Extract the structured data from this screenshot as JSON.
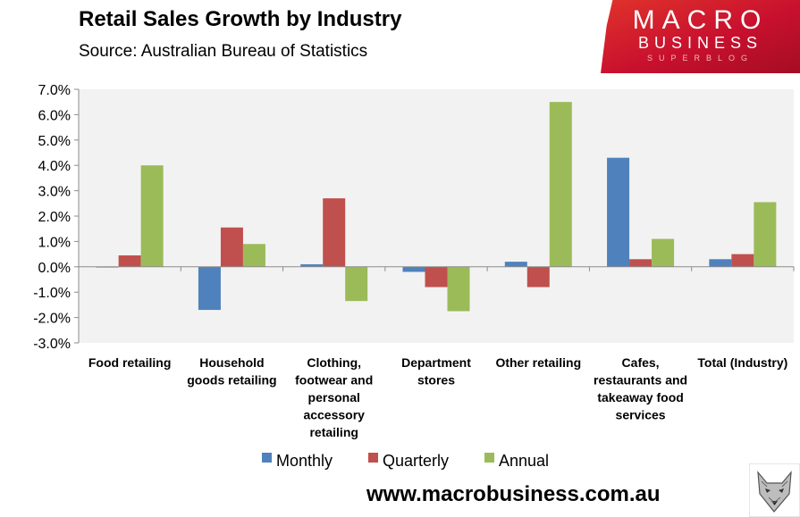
{
  "header": {
    "title": "Retail Sales Growth by Industry",
    "subtitle": "Source: Australian Bureau of Statistics"
  },
  "logo": {
    "line1": "MACRO",
    "line2": "BUSINESS",
    "line3": "SUPERBLOG"
  },
  "footer": {
    "website": "www.macrobusiness.com.au"
  },
  "colors": {
    "monthly": "#4f81bd",
    "quarterly": "#c0504d",
    "annual": "#9bbb59",
    "plot_bg": "#f2f2f2"
  },
  "chart_data": {
    "type": "bar",
    "title": "Retail Sales Growth by Industry",
    "subtitle": "Source: Australian Bureau of Statistics",
    "xlabel": "",
    "ylabel": "",
    "ylim": [
      -3,
      7
    ],
    "yticks": [
      7,
      6,
      5,
      4,
      3,
      2,
      1,
      0,
      -1,
      -2,
      -3
    ],
    "ytick_labels": [
      "7.0%",
      "6.0%",
      "5.0%",
      "4.0%",
      "3.0%",
      "2.0%",
      "1.0%",
      "0.0%",
      "-1.0%",
      "-2.0%",
      "-3.0%"
    ],
    "grid": false,
    "legend": "bottom",
    "categories": [
      [
        "Food retailing"
      ],
      [
        "Household",
        "goods retailing"
      ],
      [
        "Clothing,",
        "footwear and",
        "personal",
        "accessory",
        "retailing"
      ],
      [
        "Department",
        "stores"
      ],
      [
        "Other retailing"
      ],
      [
        "Cafes,",
        "restaurants and",
        "takeaway food",
        "services"
      ],
      [
        "Total (Industry)"
      ]
    ],
    "series": [
      {
        "name": "Monthly",
        "color": "#4f81bd",
        "values": [
          0.0,
          -1.7,
          0.1,
          -0.2,
          0.2,
          4.3,
          0.3
        ]
      },
      {
        "name": "Quarterly",
        "color": "#c0504d",
        "values": [
          0.45,
          1.55,
          2.7,
          -0.8,
          -0.8,
          0.3,
          0.5
        ]
      },
      {
        "name": "Annual",
        "color": "#9bbb59",
        "values": [
          4.0,
          0.9,
          -1.35,
          -1.75,
          6.5,
          1.1,
          2.55
        ]
      }
    ]
  }
}
